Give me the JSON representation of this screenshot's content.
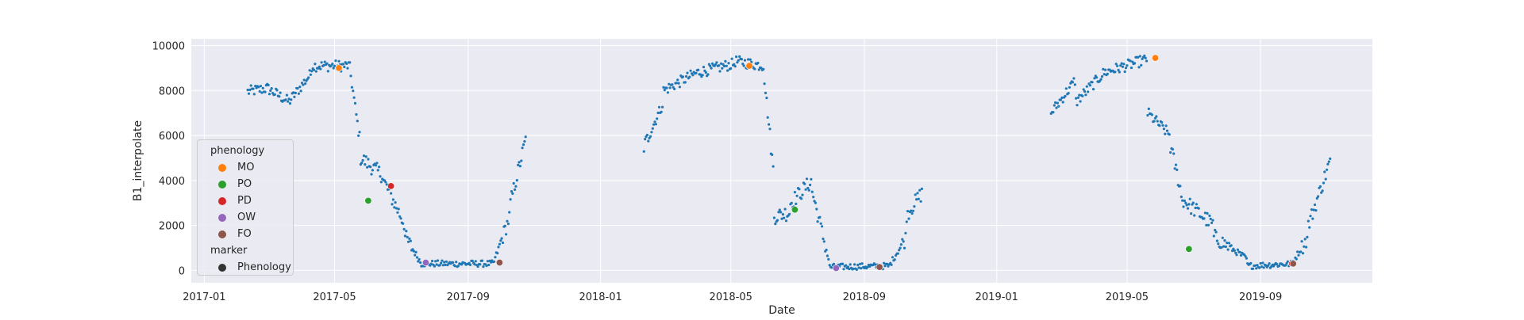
{
  "chart_data": {
    "type": "scatter",
    "xlabel": "Date",
    "ylabel": "B1_interpolate",
    "xlim": [
      "2016-12-20",
      "2019-12-13"
    ],
    "ylim": [
      -550,
      10300
    ],
    "x_ticks": [
      "2017-01",
      "2017-05",
      "2017-09",
      "2018-01",
      "2018-05",
      "2018-09",
      "2019-01",
      "2019-05",
      "2019-09"
    ],
    "y_ticks": [
      0,
      2000,
      4000,
      6000,
      8000,
      10000
    ],
    "grid": true,
    "legend_placement": "lower-left",
    "series": [
      {
        "name": "",
        "color": "#1f77b4",
        "segments": [
          {
            "start": "2017-02-10",
            "end": "2017-02-28",
            "y0": 7950,
            "y1": 8100
          },
          {
            "start": "2017-02-28",
            "end": "2017-03-20",
            "y0": 8100,
            "y1": 7500
          },
          {
            "start": "2017-03-20",
            "end": "2017-04-10",
            "y0": 7500,
            "y1": 8800
          },
          {
            "start": "2017-04-10",
            "end": "2017-05-15",
            "y0": 9100,
            "y1": 9100
          },
          {
            "start": "2017-05-15",
            "end": "2017-05-25",
            "y0": 9000,
            "y1": 5500
          },
          {
            "start": "2017-05-25",
            "end": "2017-06-15",
            "y0": 5000,
            "y1": 4200
          },
          {
            "start": "2017-06-15",
            "end": "2017-07-05",
            "y0": 4000,
            "y1": 2000
          },
          {
            "start": "2017-07-05",
            "end": "2017-07-20",
            "y0": 1500,
            "y1": 300
          },
          {
            "start": "2017-07-20",
            "end": "2017-09-25",
            "y0": 300,
            "y1": 300
          },
          {
            "start": "2017-09-25",
            "end": "2017-10-10",
            "y0": 400,
            "y1": 2500
          },
          {
            "start": "2017-10-10",
            "end": "2017-10-25",
            "y0": 3000,
            "y1": 6000
          },
          {
            "start": "2018-02-10",
            "end": "2018-02-28",
            "y0": 5500,
            "y1": 7500
          },
          {
            "start": "2018-02-28",
            "end": "2018-03-31",
            "y0": 8000,
            "y1": 8800
          },
          {
            "start": "2018-03-31",
            "end": "2018-05-05",
            "y0": 8800,
            "y1": 9200
          },
          {
            "start": "2018-05-05",
            "end": "2018-06-01",
            "y0": 9300,
            "y1": 9100
          },
          {
            "start": "2018-06-01",
            "end": "2018-06-10",
            "y0": 8500,
            "y1": 4000
          },
          {
            "start": "2018-06-10",
            "end": "2018-06-25",
            "y0": 2400,
            "y1": 2600
          },
          {
            "start": "2018-06-25",
            "end": "2018-07-15",
            "y0": 3000,
            "y1": 4000
          },
          {
            "start": "2018-07-15",
            "end": "2018-07-31",
            "y0": 3500,
            "y1": 300
          },
          {
            "start": "2018-07-31",
            "end": "2018-09-25",
            "y0": 150,
            "y1": 200
          },
          {
            "start": "2018-09-25",
            "end": "2018-10-10",
            "y0": 300,
            "y1": 1500
          },
          {
            "start": "2018-10-10",
            "end": "2018-10-25",
            "y0": 2500,
            "y1": 3500
          },
          {
            "start": "2019-02-20",
            "end": "2019-03-15",
            "y0": 7000,
            "y1": 8500
          },
          {
            "start": "2019-03-15",
            "end": "2019-04-10",
            "y0": 7500,
            "y1": 8800
          },
          {
            "start": "2019-04-10",
            "end": "2019-05-20",
            "y0": 8800,
            "y1": 9400
          },
          {
            "start": "2019-05-20",
            "end": "2019-06-10",
            "y0": 7000,
            "y1": 6000
          },
          {
            "start": "2019-06-10",
            "end": "2019-06-20",
            "y0": 5500,
            "y1": 3500
          },
          {
            "start": "2019-06-20",
            "end": "2019-07-20",
            "y0": 3200,
            "y1": 2000
          },
          {
            "start": "2019-07-20",
            "end": "2019-08-20",
            "y0": 1500,
            "y1": 500
          },
          {
            "start": "2019-08-20",
            "end": "2019-10-01",
            "y0": 200,
            "y1": 300
          },
          {
            "start": "2019-10-01",
            "end": "2019-10-15",
            "y0": 400,
            "y1": 1500
          },
          {
            "start": "2019-10-15",
            "end": "2019-11-05",
            "y0": 2000,
            "y1": 5000
          }
        ]
      },
      {
        "name": "MO",
        "color": "#ff7f0e",
        "points": [
          {
            "x": "2017-05-05",
            "y": 9000
          },
          {
            "x": "2018-05-18",
            "y": 9100
          },
          {
            "x": "2019-05-27",
            "y": 9450
          }
        ]
      },
      {
        "name": "PO",
        "color": "#2ca02c",
        "points": [
          {
            "x": "2017-06-01",
            "y": 3100
          },
          {
            "x": "2018-06-29",
            "y": 2700
          },
          {
            "x": "2019-06-27",
            "y": 950
          }
        ]
      },
      {
        "name": "PD",
        "color": "#d62728",
        "points": [
          {
            "x": "2017-06-22",
            "y": 3750
          },
          {
            "x": "2019-09-30",
            "y": 300
          }
        ]
      },
      {
        "name": "OW",
        "color": "#9467bd",
        "points": [
          {
            "x": "2017-07-24",
            "y": 350
          },
          {
            "x": "2018-08-06",
            "y": 100
          }
        ]
      },
      {
        "name": "FO",
        "color": "#8c564b",
        "points": [
          {
            "x": "2017-09-30",
            "y": 350
          },
          {
            "x": "2018-09-15",
            "y": 150
          },
          {
            "x": "2019-10-01",
            "y": 300
          }
        ]
      }
    ],
    "legend": {
      "hue_title": "phenology",
      "hue_entries": [
        {
          "label": "MO",
          "color": "#ff7f0e"
        },
        {
          "label": "PO",
          "color": "#2ca02c"
        },
        {
          "label": "PD",
          "color": "#d62728"
        },
        {
          "label": "OW",
          "color": "#9467bd"
        },
        {
          "label": "FO",
          "color": "#8c564b"
        }
      ],
      "style_title": "marker",
      "style_entries": [
        {
          "label": "Phenology",
          "color": "#333333"
        }
      ]
    },
    "colors": {
      "plot_background": "#eaeaf2",
      "grid": "#ffffff"
    }
  }
}
